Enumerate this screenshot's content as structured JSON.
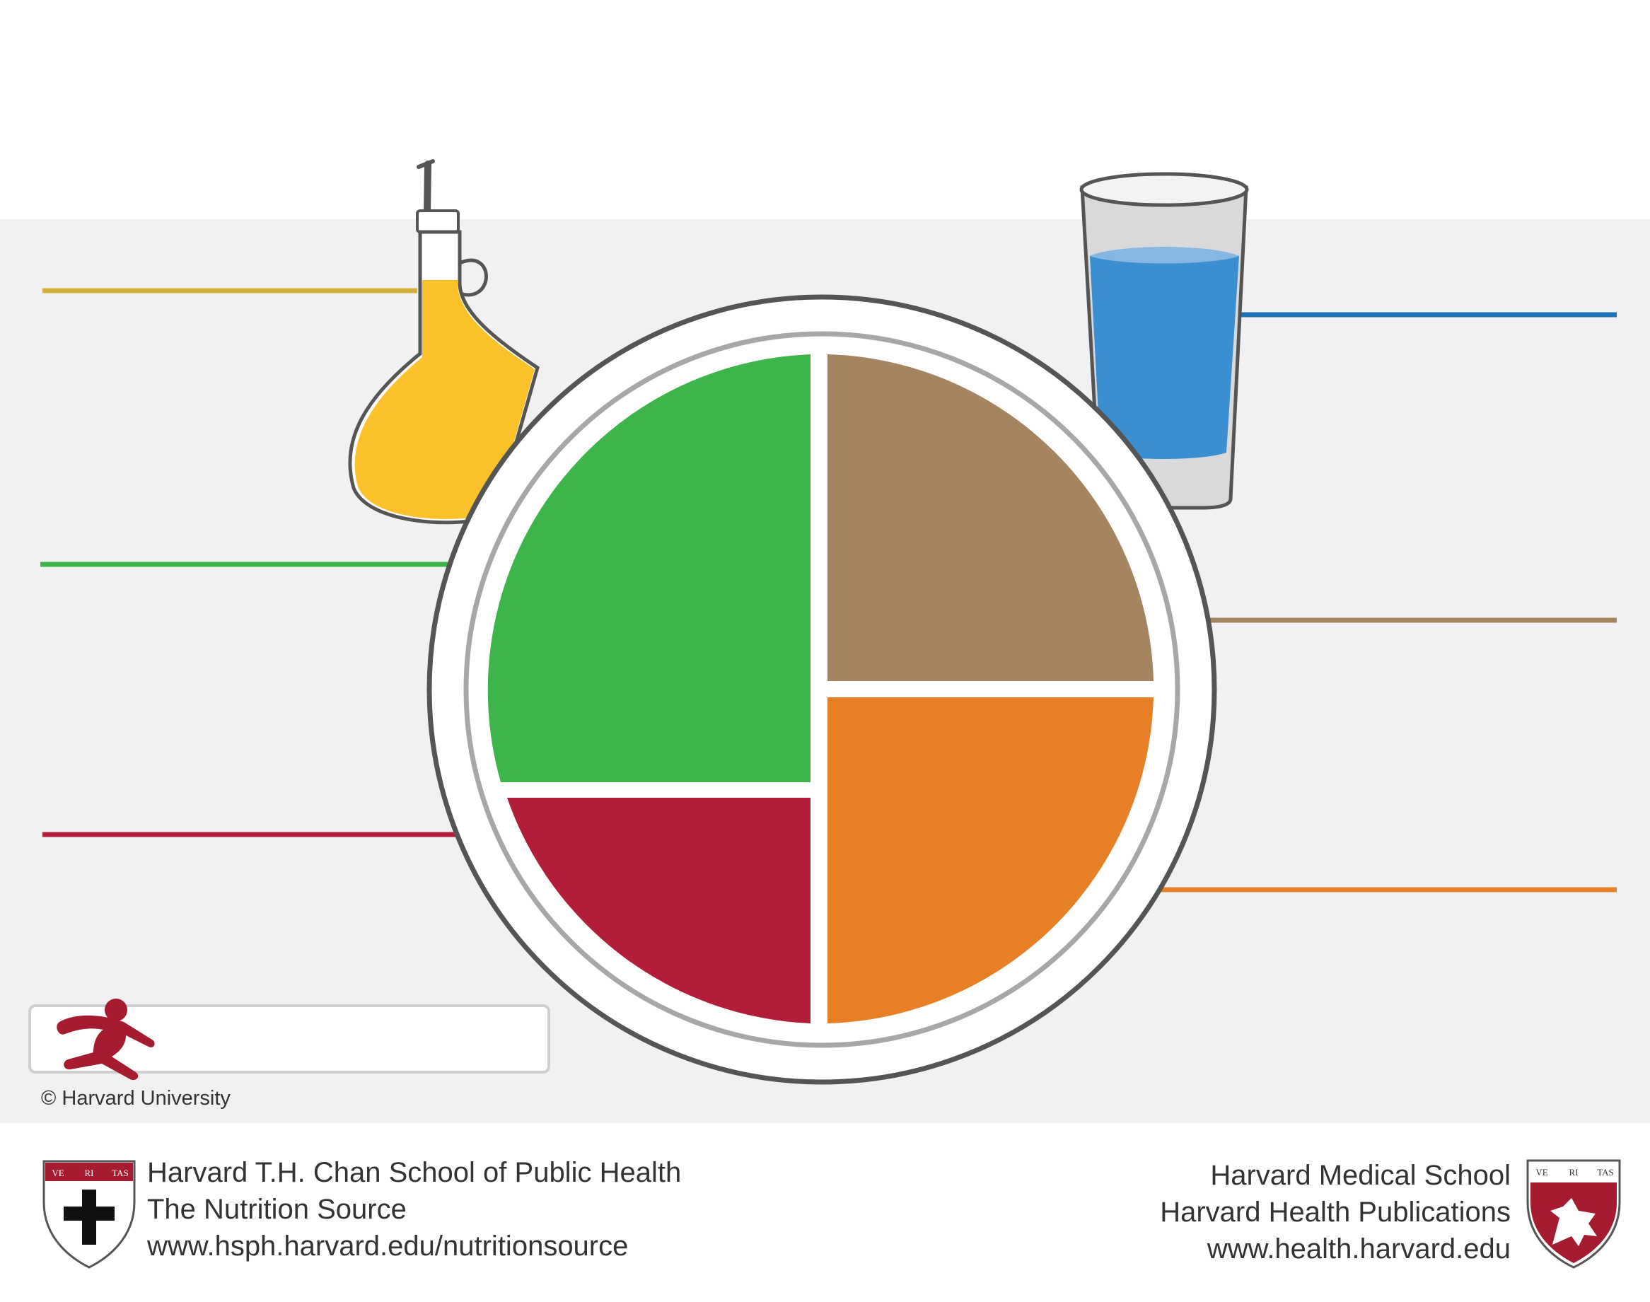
{
  "copyright": "© Harvard University",
  "footer": {
    "left": {
      "line1": "Harvard T.H. Chan School of Public Health",
      "line2": "The Nutrition Source",
      "line3": "www.hsph.harvard.edu/nutritionsource"
    },
    "right": {
      "line1": "Harvard Medical School",
      "line2": "Harvard Health Publications",
      "line3": "www.health.harvard.edu"
    },
    "shield_left_text": [
      "VE",
      "RI",
      "TAS"
    ],
    "shield_right_text": [
      "VE",
      "RI",
      "TAS"
    ]
  },
  "colors": {
    "oil_line": "#d4b23a",
    "oil": "#fcc22c",
    "water_line": "#1f74b9",
    "water": "#3b8fd0",
    "vegetables": "#3db54a",
    "whole_grains": "#a58461",
    "protein": "#e77f27",
    "fruits": "#b21e3a",
    "crimson": "#a51c30",
    "plate_outline": "#555555",
    "plate_inner_ring": "#a7a7a9",
    "background_band": "#f1f1f3"
  },
  "icons": [
    "oil-bottle-icon",
    "water-glass-icon",
    "running-figure-icon",
    "harvard-chan-shield-icon",
    "harvard-medical-shield-icon"
  ]
}
